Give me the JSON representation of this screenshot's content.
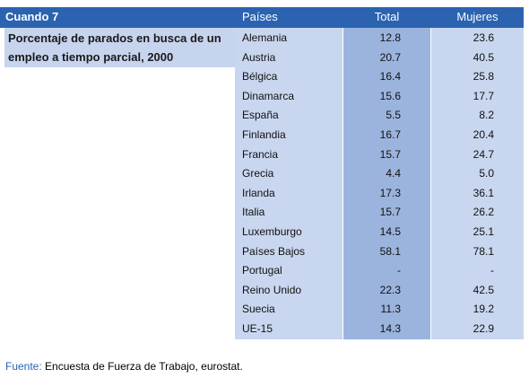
{
  "header": {
    "title": "Cuando 7",
    "description": "Porcentaje de parados en busca de un empleo a tiempo parcial, 2000"
  },
  "table": {
    "columns": [
      "Países",
      "Total",
      "Mujeres"
    ],
    "rows": [
      [
        "Alemania",
        "12.8",
        "23.6"
      ],
      [
        "Austria",
        "20.7",
        "40.5"
      ],
      [
        "Bélgica",
        "16.4",
        "25.8"
      ],
      [
        "Dinamarca",
        "15.6",
        "17.7"
      ],
      [
        "España",
        "5.5",
        "8.2"
      ],
      [
        "Finlandia",
        "16.7",
        "20.4"
      ],
      [
        "Francia",
        "15.7",
        "24.7"
      ],
      [
        "Grecia",
        "4.4",
        "5.0"
      ],
      [
        "Irlanda",
        "17.3",
        "36.1"
      ],
      [
        "Italia",
        "15.7",
        "26.2"
      ],
      [
        "Luxemburgo",
        "14.5",
        "25.1"
      ],
      [
        "Países Bajos",
        "58.1",
        "78.1"
      ],
      [
        "Portugal",
        "-",
        "-"
      ],
      [
        "Reino Unido",
        "22.3",
        "42.5"
      ],
      [
        "Suecia",
        "11.3",
        "19.2"
      ],
      [
        "UE-15",
        "14.3",
        "22.9"
      ]
    ]
  },
  "footer": {
    "label": "Fuente:",
    "text": "Encuesta de Fuerza de Trabajo, eurostat."
  }
}
